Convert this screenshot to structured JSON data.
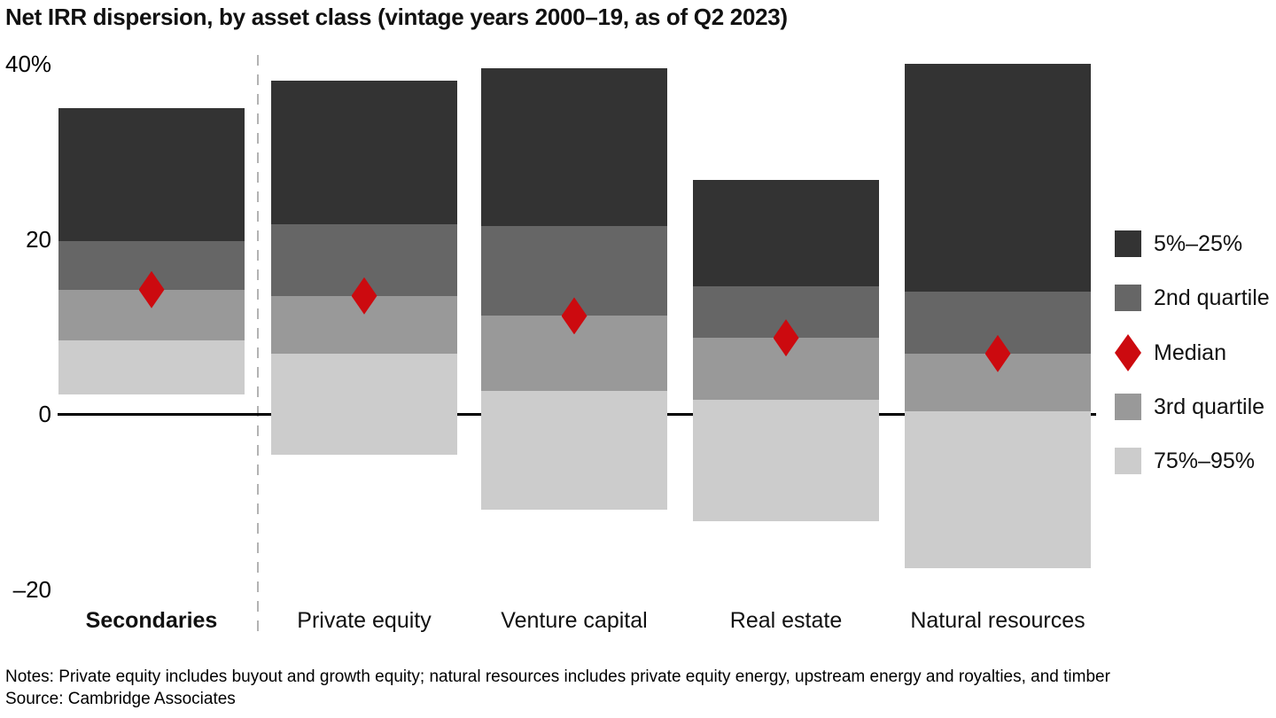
{
  "title": "Net IRR dispersion, by asset class (vintage years 2000–19, as of Q2 2023)",
  "footer": {
    "notes": "Notes: Private equity includes buyout and growth equity; natural resources includes private equity energy, upstream energy and royalties, and timber",
    "source": "Source: Cambridge Associates"
  },
  "legend": [
    {
      "id": "band-5-25",
      "label": "5%–25%",
      "shape": "square",
      "color": "#333333"
    },
    {
      "id": "band-2nd",
      "label": "2nd quartile",
      "shape": "square",
      "color": "#666666"
    },
    {
      "id": "median",
      "label": "Median",
      "shape": "diamond",
      "color": "#cc0a0f"
    },
    {
      "id": "band-3rd",
      "label": "3rd quartile",
      "shape": "square",
      "color": "#999999"
    },
    {
      "id": "band-75-95",
      "label": "75%–95%",
      "shape": "square",
      "color": "#cccccc"
    }
  ],
  "chart_data": {
    "type": "bar",
    "subtype": "floating-percentile-dispersion-bars",
    "title": "Net IRR dispersion, by asset class (vintage years 2000–19, as of Q2 2023)",
    "xlabel": "",
    "ylabel": "",
    "unit": "percent (net IRR)",
    "ylim": [
      -20,
      40
    ],
    "grid": false,
    "legend_position": "right",
    "yticks": [
      {
        "label": "40%",
        "value": 40
      },
      {
        "label": "20",
        "value": 20
      },
      {
        "label": "0",
        "value": 0
      },
      {
        "label": "–20",
        "value": -20
      }
    ],
    "categories": [
      "Secondaries",
      "Private equity",
      "Venture capital",
      "Real estate",
      "Natural resources"
    ],
    "separator_after_category_index": 0,
    "bands": [
      {
        "id": "p5-p25",
        "label": "5%–25%",
        "from": "p5",
        "to": "p25",
        "color": "#333333"
      },
      {
        "id": "p25-median",
        "label": "2nd quartile",
        "from": "p25",
        "to": "median",
        "color": "#666666"
      },
      {
        "id": "median-p75",
        "label": "3rd quartile",
        "from": "median",
        "to": "p75",
        "color": "#999999"
      },
      {
        "id": "p75-p95",
        "label": "75%–95%",
        "from": "p75",
        "to": "p95",
        "color": "#cccccc"
      }
    ],
    "median_marker": {
      "label": "Median",
      "shape": "diamond",
      "color": "#cc0a0f"
    },
    "series": [
      {
        "key": "secondaries",
        "name": "Secondaries",
        "emphasis": true,
        "p5": 34.9,
        "p25": 19.7,
        "median": 14.2,
        "p75": 8.4,
        "p95": 2.2
      },
      {
        "key": "private-equity",
        "name": "Private equity",
        "emphasis": false,
        "p5": 38.1,
        "p25": 21.7,
        "median": 13.5,
        "p75": 6.9,
        "p95": -4.7
      },
      {
        "key": "venture-capital",
        "name": "Venture capital",
        "emphasis": false,
        "p5": 39.5,
        "p25": 21.5,
        "median": 11.2,
        "p75": 2.6,
        "p95": -10.9
      },
      {
        "key": "real-estate",
        "name": "Real estate",
        "emphasis": false,
        "p5": 26.7,
        "p25": 14.6,
        "median": 8.7,
        "p75": 1.6,
        "p95": -12.3
      },
      {
        "key": "natural-resources",
        "name": "Natural resources",
        "emphasis": false,
        "p5": 40.0,
        "p25": 14.0,
        "median": 6.9,
        "p75": 0.3,
        "p95": -17.6
      }
    ]
  }
}
